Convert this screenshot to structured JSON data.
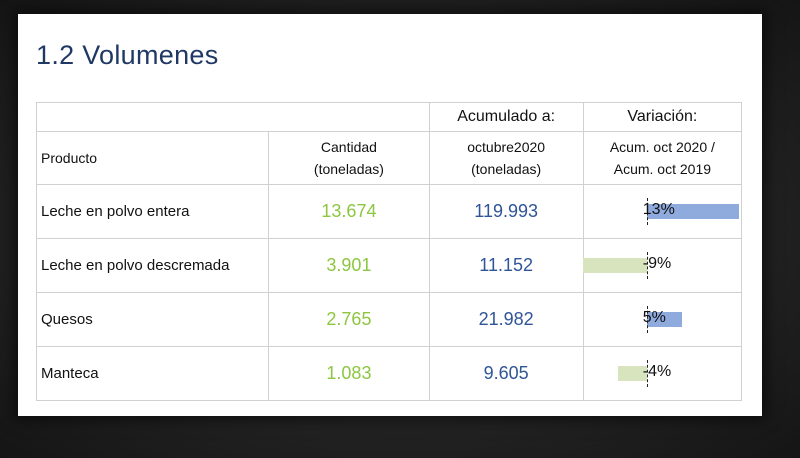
{
  "section_title": "1.2  Volumenes",
  "table": {
    "header": {
      "producto": "Producto",
      "cantidad_line1": "Cantidad",
      "cantidad_line2": "(toneladas)",
      "acumulado_top": "Acumulado a:",
      "acumulado_line1": "octubre2020",
      "acumulado_line2": "(toneladas)",
      "variacion_top": "Variación:",
      "variacion_line1": "Acum. oct 2020 /",
      "variacion_line2": "Acum. oct 2019"
    },
    "rows": [
      {
        "producto": "Leche en polvo entera",
        "cantidad": "13.674",
        "acumulado": "119.993",
        "variacion_label": "13%",
        "variacion_value": 13
      },
      {
        "producto": "Leche en polvo descremada",
        "cantidad": "3.901",
        "acumulado": "11.152",
        "variacion_label": "-9%",
        "variacion_value": -9
      },
      {
        "producto": "Quesos",
        "cantidad": "2.765",
        "acumulado": "21.982",
        "variacion_label": "5%",
        "variacion_value": 5
      },
      {
        "producto": "Manteca",
        "cantidad": "1.083",
        "acumulado": "9.605",
        "variacion_label": "-4%",
        "variacion_value": -4
      }
    ]
  },
  "colors": {
    "title": "#1f3864",
    "cantidad": "#8dc63f",
    "acumulado": "#2f5597",
    "bar_positive": "#8faadc",
    "bar_negative": "#d7e4bd"
  }
}
